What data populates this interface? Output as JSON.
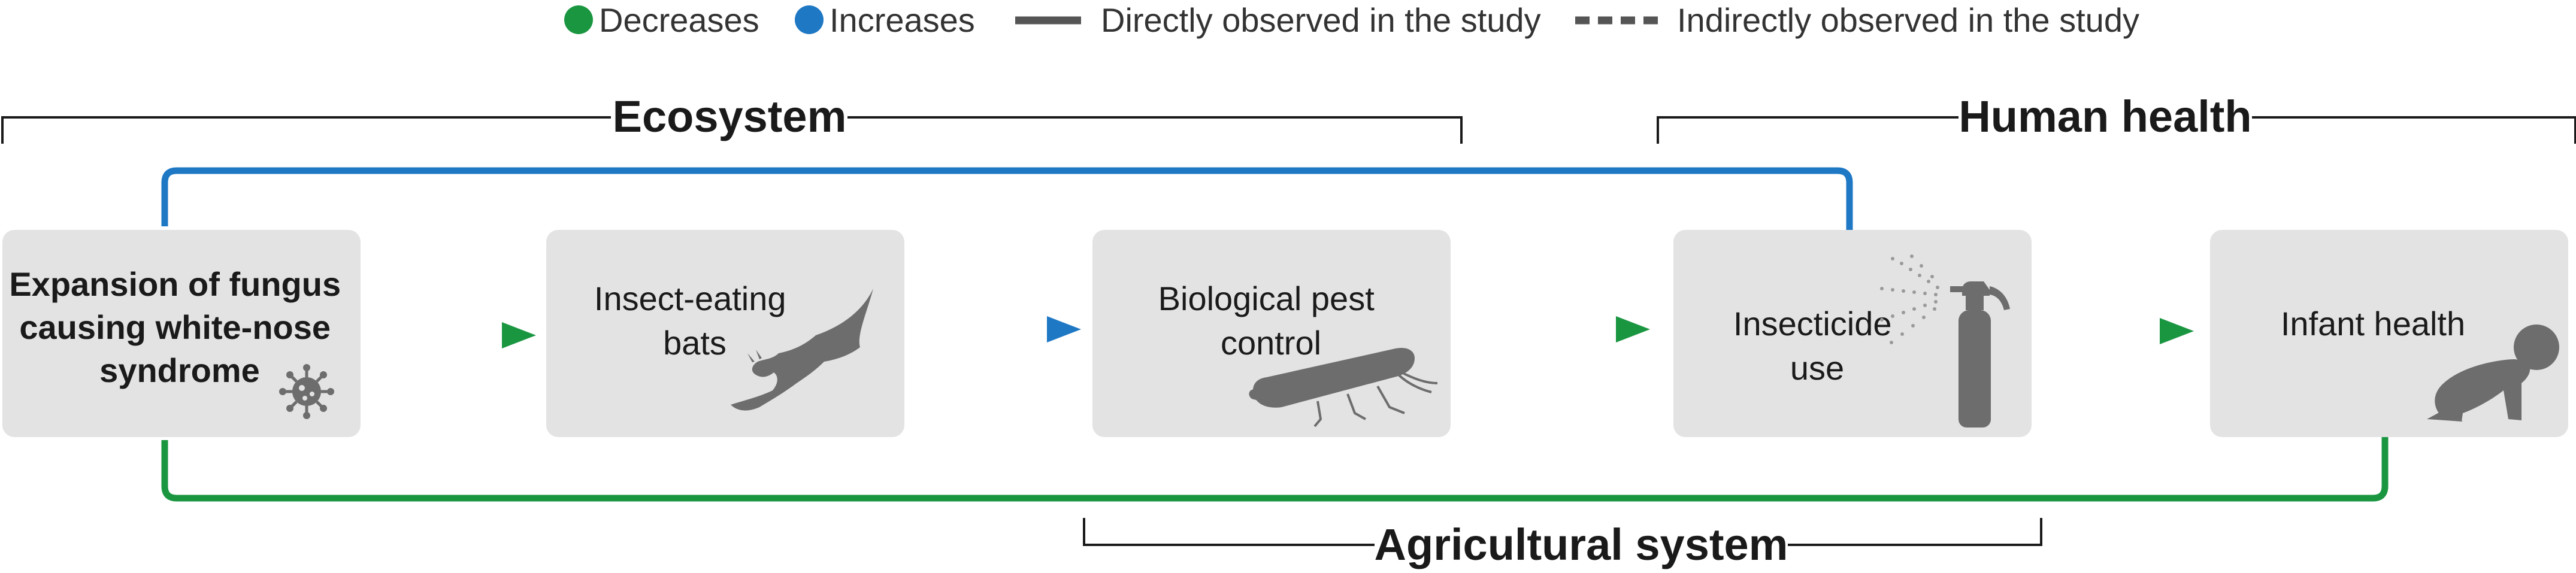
{
  "legend": {
    "decreases": "Decreases",
    "increases": "Increases",
    "direct": "Directly observed in the study",
    "indirect": "Indirectly observed in the study"
  },
  "brackets": {
    "ecosystem": "Ecosystem",
    "human_health": "Human health",
    "agricultural": "Agricultural system"
  },
  "nodes": {
    "fungus": [
      "Expansion of fungus",
      "causing white-nose",
      "syndrome"
    ],
    "bats": [
      "Insect-eating",
      "bats"
    ],
    "pest": [
      "Biological pest",
      "control"
    ],
    "insecticide": [
      "Insecticide",
      "use"
    ],
    "infant": [
      "Infant health"
    ]
  },
  "colors": {
    "decrease": "#1a9641",
    "increase": "#1f78c4",
    "node_fill": "#e3e3e3",
    "silhouette": "#6d6d6d",
    "bracket": "#1a1a1a"
  },
  "edges": [
    {
      "from": "fungus",
      "to": "bats",
      "effect": "decreases",
      "observation": "indirect"
    },
    {
      "from": "bats",
      "to": "pest",
      "effect": "increases",
      "observation": "indirect"
    },
    {
      "from": "pest",
      "to": "insecticide",
      "effect": "decreases",
      "observation": "indirect"
    },
    {
      "from": "insecticide",
      "to": "infant",
      "effect": "decreases",
      "observation": "indirect"
    },
    {
      "from": "fungus",
      "to": "insecticide",
      "effect": "increases",
      "observation": "direct"
    },
    {
      "from": "fungus",
      "to": "infant",
      "effect": "decreases",
      "observation": "direct"
    }
  ],
  "icons": {
    "fungus": "virus-icon",
    "bats": "bat-icon",
    "pest": "leafhopper-icon",
    "insecticide": "spray-bottle-icon",
    "infant": "crawling-baby-icon"
  }
}
